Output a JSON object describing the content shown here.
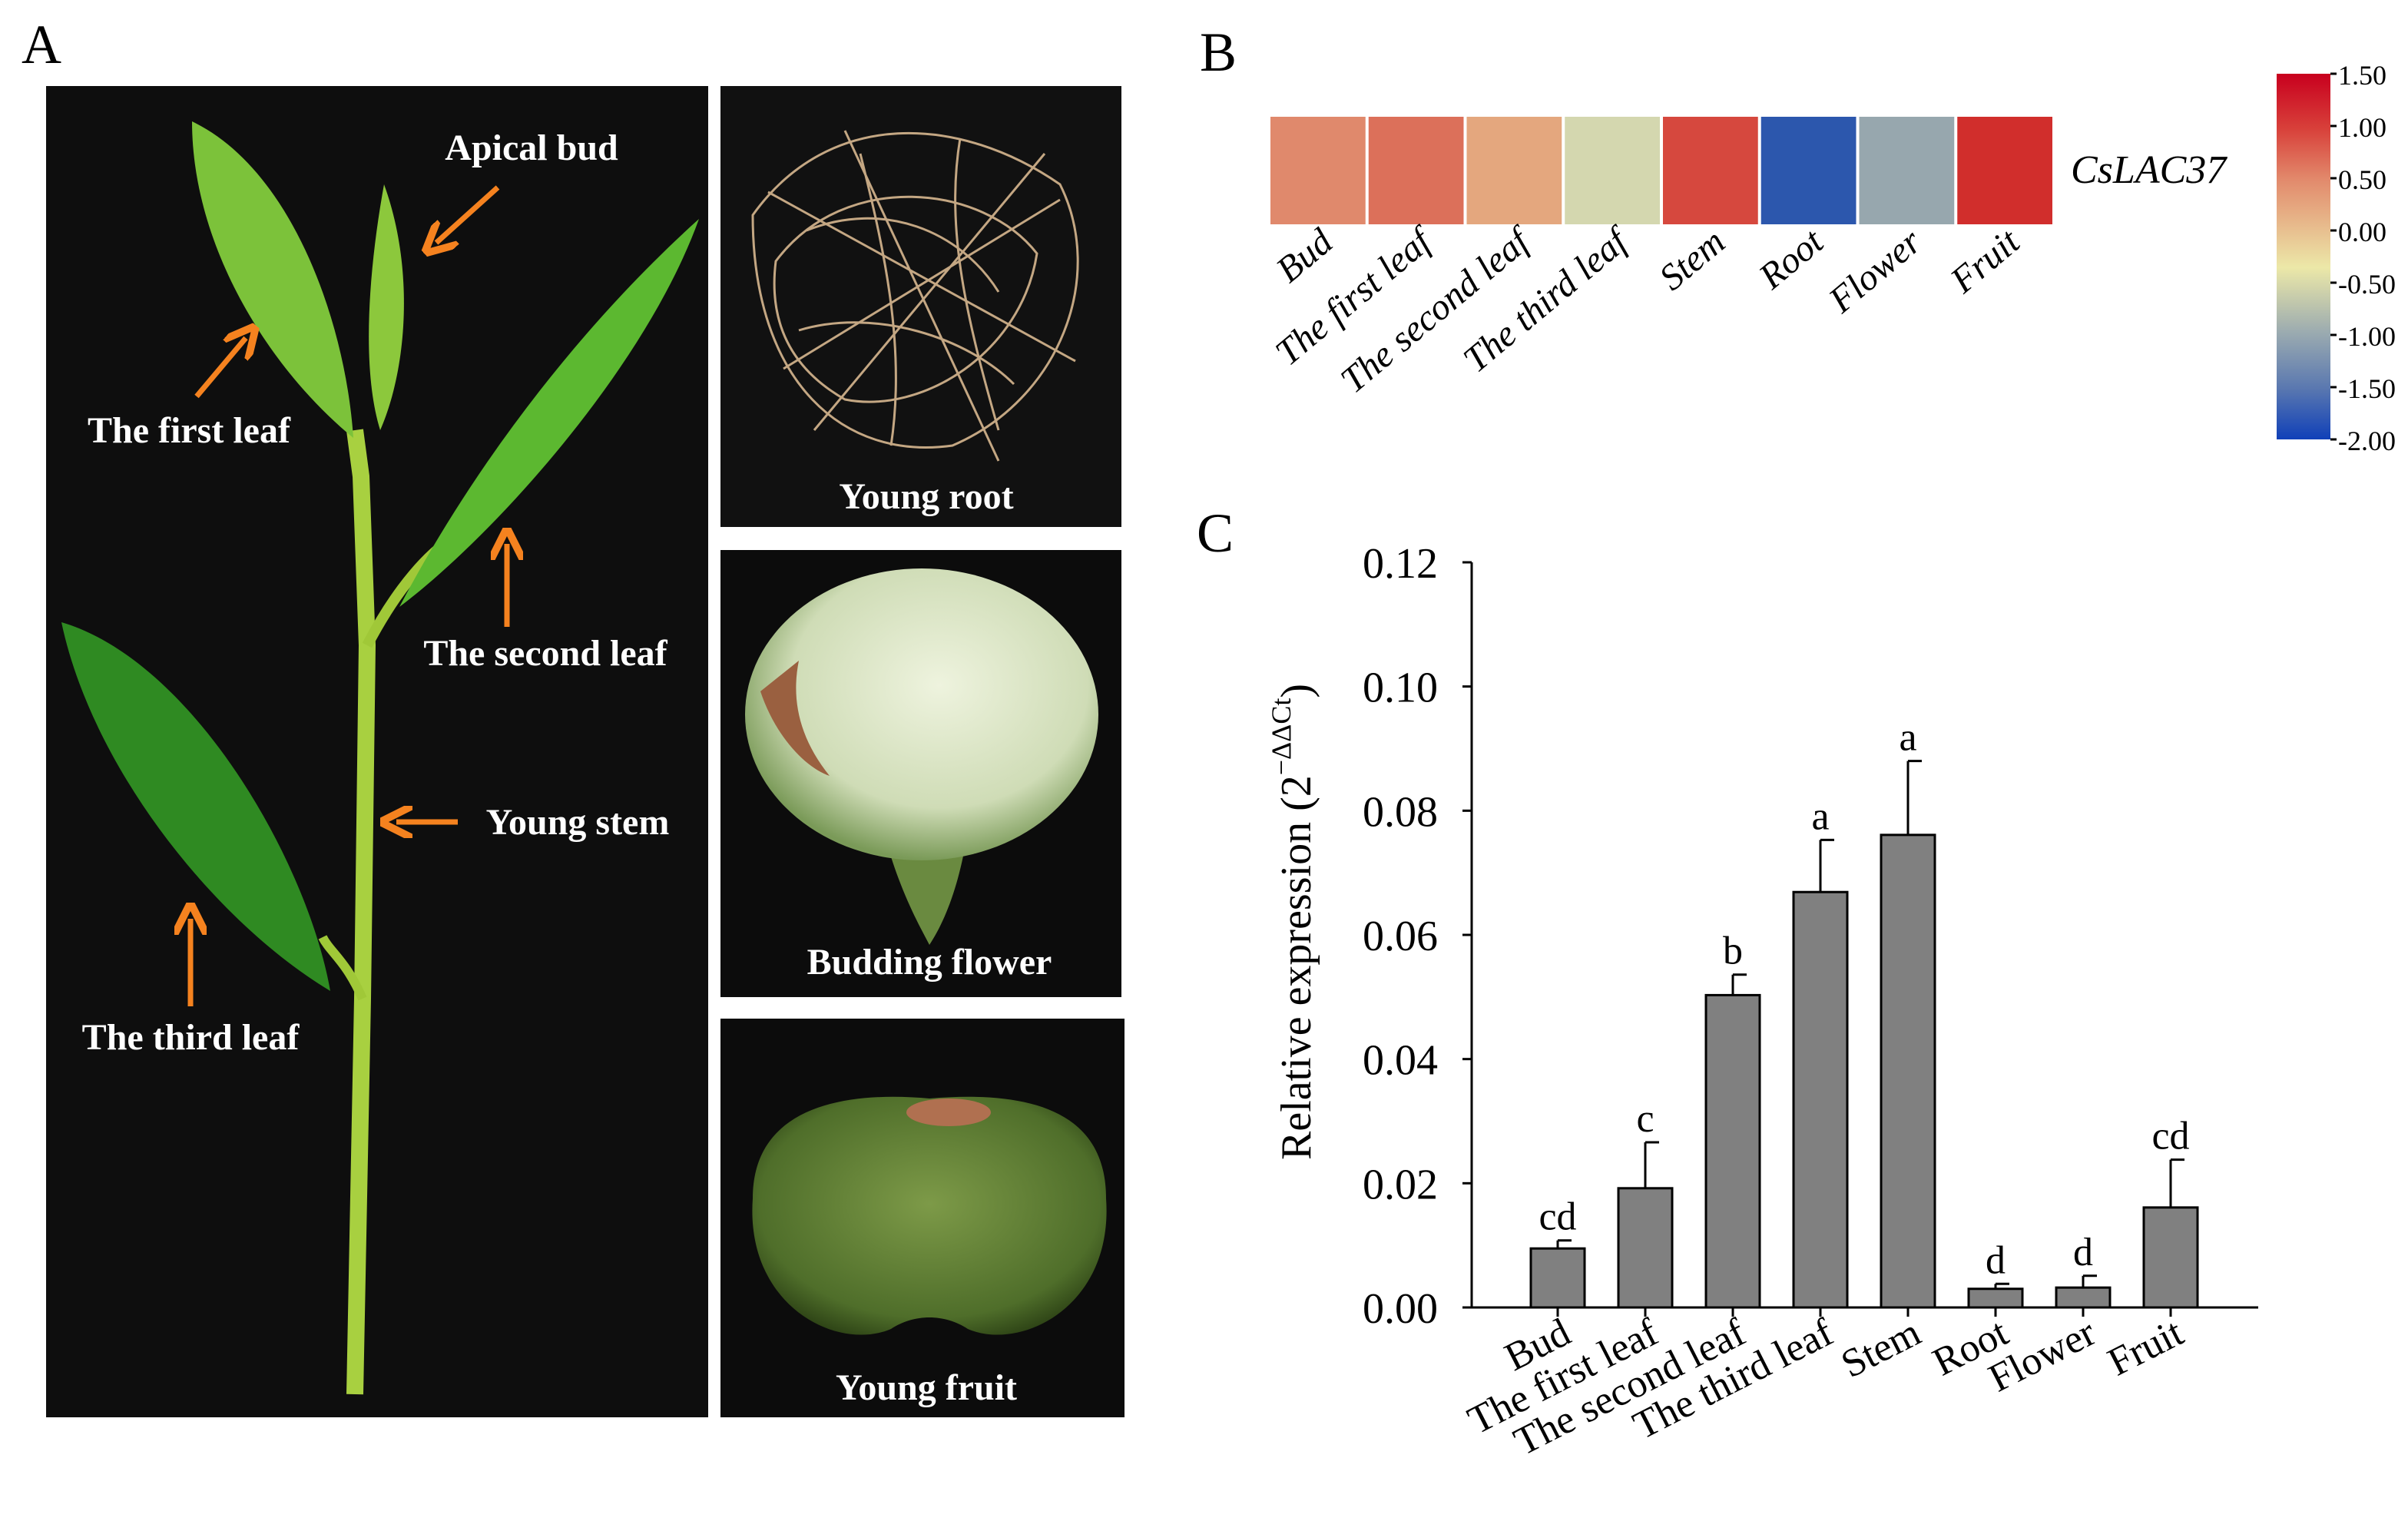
{
  "panels": {
    "a": "A",
    "b": "B",
    "c": "C"
  },
  "photos": {
    "main_labels": {
      "apical_bud": "Apical bud",
      "first_leaf": "The first leaf",
      "second_leaf": "The second leaf",
      "young_stem": "Young stem",
      "third_leaf": "The third leaf"
    },
    "young_root": "Young root",
    "budding_flower": "Budding flower",
    "young_fruit": "Young fruit",
    "arrow_color": "#f5821f"
  },
  "chart_data": [
    {
      "type": "heatmap",
      "row_label": "CsLAC37",
      "categories": [
        "Bud",
        "The first leaf",
        "The second leaf",
        "The third leaf",
        "Stem",
        "Root",
        "Flower",
        "Fruit"
      ],
      "values": [
        0.5,
        0.7,
        0.25,
        -0.6,
        1.0,
        -1.8,
        -1.1,
        1.2
      ],
      "colors": [
        "#e0896c",
        "#dc705a",
        "#e4a77e",
        "#d4d7af",
        "#d6483e",
        "#2c57ad",
        "#97a7ae",
        "#d12e2c"
      ],
      "colorbar": {
        "range": [
          -2.0,
          1.5
        ],
        "ticks": [
          "1.50",
          "1.00",
          "0.50",
          "0.00",
          "-0.50",
          "-1.00",
          "-1.50",
          "-2.00"
        ],
        "placement": "right"
      }
    },
    {
      "type": "bar",
      "categories": [
        "Bud",
        "The first leaf",
        "The second leaf",
        "The third leaf",
        "Stem",
        "Root",
        "Flower",
        "Fruit"
      ],
      "values": [
        0.0095,
        0.0192,
        0.0503,
        0.0669,
        0.0761,
        0.003,
        0.0032,
        0.0161
      ],
      "error_upper": [
        0.0108,
        0.0266,
        0.0536,
        0.0753,
        0.088,
        0.0038,
        0.0051,
        0.0238
      ],
      "significance": [
        "cd",
        "c",
        "b",
        "a",
        "a",
        "d",
        "d",
        "cd"
      ],
      "ylabel": "Relative expression (2",
      "ylabel_sup": "−ΔΔCt",
      "ylabel_close": ")",
      "ylim": [
        0,
        0.12
      ],
      "yticks": [
        "0.00",
        "0.02",
        "0.04",
        "0.06",
        "0.08",
        "0.10",
        "0.12"
      ],
      "bar_color": "#808080",
      "grid": false
    }
  ]
}
